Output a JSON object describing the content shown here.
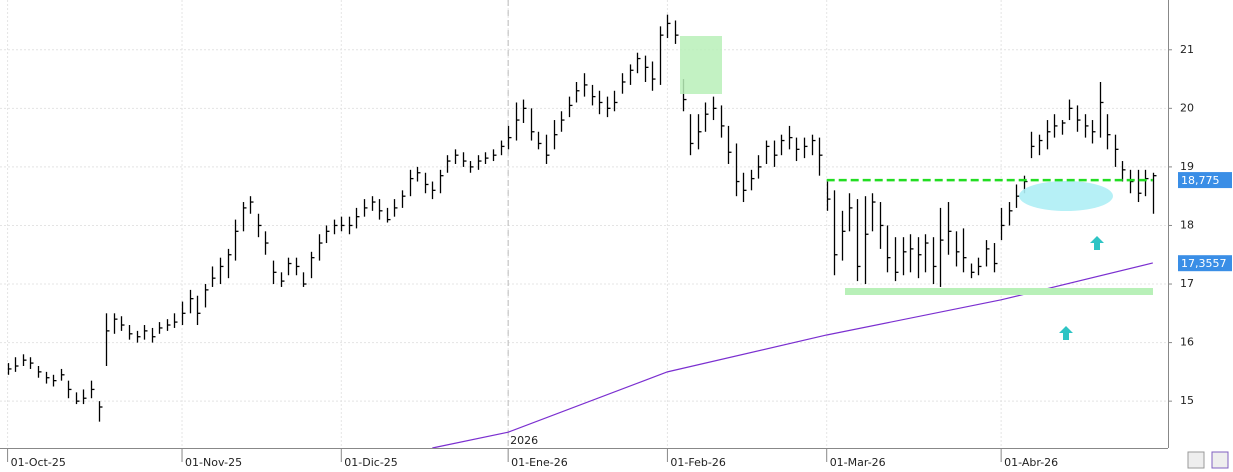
{
  "chart_data": {
    "type": "ohlc",
    "xlim": [
      -1,
      153
    ],
    "ylim": [
      14.2,
      21.85
    ],
    "xticks": [
      {
        "value": 0,
        "label": "01-Oct-25"
      },
      {
        "value": 23,
        "label": "01-Nov-25"
      },
      {
        "value": 44,
        "label": "01-Dic-25"
      },
      {
        "value": 66,
        "label": "01-Ene-26"
      },
      {
        "value": 87,
        "label": "01-Feb-26"
      },
      {
        "value": 108,
        "label": "01-Mar-26"
      },
      {
        "value": 131,
        "label": "01-Abr-26"
      }
    ],
    "yticks": [
      15,
      16,
      17,
      18,
      19,
      20,
      21
    ],
    "year_marker": {
      "x": 66,
      "label": "2026"
    },
    "grid": true,
    "bar_color": "#000000",
    "high": [
      15.65,
      15.75,
      15.8,
      15.75,
      15.6,
      15.5,
      15.45,
      15.55,
      15.35,
      15.15,
      15.2,
      15.35,
      15.0,
      16.5,
      16.5,
      16.45,
      16.3,
      16.2,
      16.3,
      16.25,
      16.35,
      16.4,
      16.5,
      16.7,
      16.9,
      16.8,
      17.0,
      17.3,
      17.45,
      17.6,
      18.1,
      18.4,
      18.5,
      18.2,
      17.9,
      17.4,
      17.2,
      17.45,
      17.45,
      17.2,
      17.55,
      17.85,
      18.0,
      18.1,
      18.15,
      18.15,
      18.3,
      18.45,
      18.5,
      18.45,
      18.3,
      18.45,
      18.6,
      18.95,
      19.0,
      18.9,
      18.75,
      18.95,
      19.2,
      19.3,
      19.25,
      19.1,
      19.2,
      19.25,
      19.3,
      19.45,
      19.7,
      20.1,
      20.15,
      20.0,
      19.6,
      19.55,
      19.8,
      19.95,
      20.2,
      20.45,
      20.6,
      20.4,
      20.3,
      20.2,
      20.3,
      20.6,
      20.75,
      20.95,
      20.9,
      20.8,
      21.4,
      21.6,
      21.5,
      20.5,
      19.9,
      19.9,
      20.1,
      20.2,
      20.05,
      19.7,
      19.4,
      18.9,
      18.95,
      19.2,
      19.45,
      19.45,
      19.55,
      19.7,
      19.5,
      19.5,
      19.55,
      19.5,
      18.75,
      18.6,
      18.25,
      18.55,
      18.45,
      18.5,
      18.55,
      18.4,
      18.0,
      17.8,
      17.8,
      17.85,
      17.8,
      17.85,
      17.8,
      18.3,
      18.4,
      17.9,
      17.95,
      17.35,
      17.45,
      17.75,
      17.7,
      18.3,
      18.4,
      18.7,
      18.85,
      19.6,
      19.55,
      19.8,
      19.9,
      19.8,
      20.15,
      20.05,
      19.9,
      19.8,
      20.45,
      19.9,
      19.55,
      19.1,
      18.95,
      18.95,
      18.95,
      18.9
    ],
    "low": [
      15.45,
      15.5,
      15.6,
      15.55,
      15.4,
      15.3,
      15.25,
      15.35,
      15.05,
      14.95,
      14.95,
      15.05,
      14.65,
      15.6,
      16.15,
      16.2,
      16.05,
      16.0,
      16.05,
      16.0,
      16.15,
      16.2,
      16.25,
      16.3,
      16.5,
      16.3,
      16.6,
      16.95,
      17.0,
      17.1,
      17.4,
      17.9,
      18.2,
      17.8,
      17.5,
      17.0,
      16.95,
      17.15,
      17.15,
      16.95,
      17.1,
      17.4,
      17.7,
      17.85,
      17.9,
      17.85,
      17.95,
      18.15,
      18.25,
      18.1,
      18.05,
      18.15,
      18.3,
      18.5,
      18.75,
      18.55,
      18.45,
      18.55,
      18.9,
      19.05,
      19.0,
      18.9,
      18.95,
      19.05,
      19.1,
      19.2,
      19.3,
      19.45,
      19.75,
      19.45,
      19.3,
      19.05,
      19.3,
      19.6,
      19.85,
      20.1,
      20.2,
      20.05,
      19.9,
      19.85,
      19.95,
      20.25,
      20.4,
      20.6,
      20.45,
      20.3,
      20.4,
      21.2,
      21.1,
      19.95,
      19.2,
      19.3,
      19.6,
      19.8,
      19.5,
      19.05,
      18.5,
      18.4,
      18.6,
      18.8,
      19.05,
      19.0,
      19.2,
      19.3,
      19.1,
      19.15,
      19.2,
      18.85,
      18.25,
      17.15,
      17.4,
      17.9,
      17.05,
      17.0,
      17.9,
      17.6,
      17.2,
      17.05,
      17.15,
      17.2,
      17.1,
      17.2,
      17.0,
      16.95,
      17.5,
      17.3,
      17.2,
      17.1,
      17.15,
      17.3,
      17.2,
      17.75,
      18.0,
      18.3,
      18.55,
      19.15,
      19.2,
      19.3,
      19.5,
      19.55,
      19.8,
      19.6,
      19.5,
      19.4,
      19.5,
      19.3,
      19.0,
      18.75,
      18.55,
      18.4,
      18.5,
      18.2
    ],
    "close": [
      15.55,
      15.6,
      15.7,
      15.65,
      15.5,
      15.4,
      15.35,
      15.45,
      15.2,
      15.0,
      15.05,
      15.2,
      14.9,
      16.2,
      16.4,
      16.3,
      16.15,
      16.1,
      16.2,
      16.1,
      16.25,
      16.3,
      16.35,
      16.5,
      16.75,
      16.5,
      16.9,
      17.1,
      17.3,
      17.5,
      17.9,
      18.3,
      18.4,
      18.0,
      17.7,
      17.2,
      17.05,
      17.35,
      17.3,
      17.0,
      17.45,
      17.7,
      17.9,
      18.0,
      18.0,
      18.0,
      18.15,
      18.3,
      18.4,
      18.25,
      18.1,
      18.3,
      18.5,
      18.8,
      18.9,
      18.7,
      18.6,
      18.85,
      19.1,
      19.2,
      19.1,
      19.0,
      19.1,
      19.15,
      19.2,
      19.35,
      19.5,
      19.8,
      20.0,
      19.6,
      19.4,
      19.2,
      19.55,
      19.8,
      20.05,
      20.3,
      20.4,
      20.2,
      20.1,
      20.0,
      20.1,
      20.45,
      20.65,
      20.85,
      20.7,
      20.5,
      21.25,
      21.45,
      21.25,
      20.15,
      19.4,
      19.6,
      19.9,
      20.0,
      19.7,
      19.25,
      18.75,
      18.6,
      18.8,
      19.0,
      19.35,
      19.2,
      19.45,
      19.5,
      19.3,
      19.35,
      19.45,
      19.2,
      18.45,
      17.5,
      17.9,
      18.3,
      17.3,
      17.85,
      18.4,
      18.0,
      17.45,
      17.2,
      17.55,
      17.6,
      17.5,
      17.7,
      17.3,
      17.75,
      17.9,
      17.55,
      17.45,
      17.2,
      17.3,
      17.6,
      17.35,
      18.0,
      18.25,
      18.5,
      18.75,
      19.35,
      19.45,
      19.6,
      19.7,
      19.75,
      20.0,
      19.8,
      19.7,
      19.6,
      20.1,
      19.55,
      19.3,
      18.95,
      18.75,
      18.55,
      18.8,
      18.85
    ],
    "moving_average": {
      "color": "#7b2fd0",
      "x": [
        56,
        66,
        87,
        108,
        131,
        151
      ],
      "values": [
        14.2,
        14.47,
        15.5,
        16.13,
        16.73,
        17.36
      ],
      "last": {
        "value": 17.3557,
        "label": "17,3557"
      }
    },
    "price_line": {
      "color": "#22dd22",
      "start": 108,
      "end": 151,
      "value": 18.775,
      "label": "18,775"
    },
    "label_color": "#3a8ee6"
  }
}
